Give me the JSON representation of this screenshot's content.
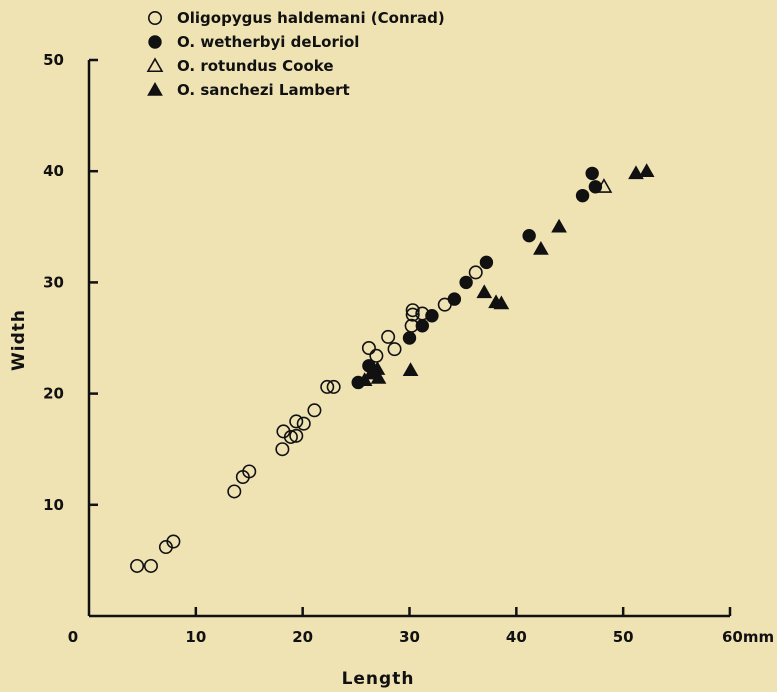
{
  "chart_data": {
    "type": "scatter",
    "xlabel": "Length",
    "ylabel": "Width",
    "xlim": [
      0,
      60
    ],
    "ylim": [
      0,
      50
    ],
    "x_ticks": [
      {
        "value": 0,
        "label": "0"
      },
      {
        "value": 10,
        "label": "10"
      },
      {
        "value": 20,
        "label": "20"
      },
      {
        "value": 30,
        "label": "30"
      },
      {
        "value": 40,
        "label": "40"
      },
      {
        "value": 50,
        "label": "50"
      },
      {
        "value": 60,
        "label": "60mm"
      }
    ],
    "y_ticks": [
      {
        "value": 10,
        "label": "10"
      },
      {
        "value": 20,
        "label": "20"
      },
      {
        "value": 30,
        "label": "30"
      },
      {
        "value": 40,
        "label": "40"
      },
      {
        "value": 50,
        "label": "50"
      }
    ],
    "grid": false,
    "legend_position": "top-left",
    "series": [
      {
        "name": "Oligopygus haldemani (Conrad)",
        "marker": "open-circle",
        "color": "#111111",
        "points": [
          [
            4.5,
            4.5
          ],
          [
            5.8,
            4.5
          ],
          [
            7.2,
            6.2
          ],
          [
            7.9,
            6.7
          ],
          [
            13.6,
            11.2
          ],
          [
            14.4,
            12.5
          ],
          [
            15.0,
            13.0
          ],
          [
            18.1,
            15.0
          ],
          [
            18.2,
            16.6
          ],
          [
            18.9,
            16.1
          ],
          [
            19.4,
            16.2
          ],
          [
            19.4,
            17.5
          ],
          [
            20.1,
            17.3
          ],
          [
            21.1,
            18.5
          ],
          [
            22.3,
            20.6
          ],
          [
            22.9,
            20.6
          ],
          [
            26.2,
            24.1
          ],
          [
            26.9,
            23.4
          ],
          [
            28.0,
            25.1
          ],
          [
            28.6,
            24.0
          ],
          [
            30.2,
            26.1
          ],
          [
            30.3,
            27.1
          ],
          [
            30.3,
            27.5
          ],
          [
            31.2,
            27.2
          ],
          [
            33.3,
            28.0
          ],
          [
            36.2,
            30.9
          ]
        ]
      },
      {
        "name": "O. wetherbyi deLoriol",
        "marker": "filled-circle",
        "color": "#111111",
        "points": [
          [
            25.2,
            21.0
          ],
          [
            26.2,
            22.5
          ],
          [
            30.0,
            25.0
          ],
          [
            31.2,
            26.1
          ],
          [
            32.1,
            27.0
          ],
          [
            34.2,
            28.5
          ],
          [
            35.3,
            30.0
          ],
          [
            37.2,
            31.8
          ],
          [
            41.2,
            34.2
          ],
          [
            46.2,
            37.8
          ],
          [
            47.1,
            39.8
          ],
          [
            47.4,
            38.6
          ]
        ]
      },
      {
        "name": "O. rotundus Cooke",
        "marker": "open-triangle",
        "color": "#111111",
        "points": [
          [
            48.2,
            38.6
          ]
        ]
      },
      {
        "name": "O. sanchezi Lambert",
        "marker": "filled-triangle",
        "color": "#111111",
        "points": [
          [
            25.8,
            21.2
          ],
          [
            26.4,
            21.8
          ],
          [
            27.0,
            22.2
          ],
          [
            27.1,
            21.4
          ],
          [
            30.1,
            22.1
          ],
          [
            37.0,
            29.1
          ],
          [
            38.1,
            28.2
          ],
          [
            38.6,
            28.1
          ],
          [
            42.3,
            33.0
          ],
          [
            44.0,
            35.0
          ],
          [
            51.2,
            39.8
          ],
          [
            52.2,
            40.0
          ]
        ]
      }
    ]
  }
}
